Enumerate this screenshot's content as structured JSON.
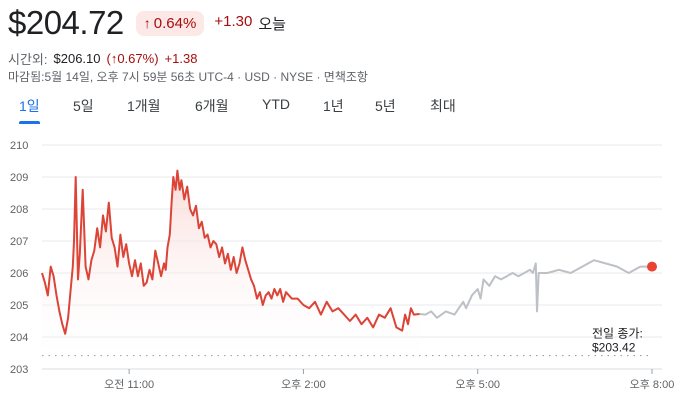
{
  "quote": {
    "price": "$204.72",
    "change_pct": "0.64%",
    "change_abs": "+1.30",
    "today_label": "오늘",
    "arrow_icon": "arrow-up-icon"
  },
  "after_hours": {
    "label": "시간외:",
    "price": "$206.10",
    "pct": "(↑0.67%)",
    "abs": "+1.38"
  },
  "meta_line": "마감됨:5월 14일, 오후 7시 59분 56초 UTC-4 · USD · NYSE · 면책조항",
  "tabs": [
    {
      "label": "1일",
      "active": true
    },
    {
      "label": "5일",
      "active": false
    },
    {
      "label": "1개월",
      "active": false
    },
    {
      "label": "6개월",
      "active": false
    },
    {
      "label": "YTD",
      "active": false
    },
    {
      "label": "1년",
      "active": false
    },
    {
      "label": "5년",
      "active": false
    },
    {
      "label": "최대",
      "active": false
    }
  ],
  "colors": {
    "regular_line": "#db4437",
    "after_hours_line": "#bdc1c6",
    "fill_top": "#f8d7d3",
    "grid": "#e8eaed",
    "prev_close_line": "#9aa0a6",
    "end_dot": "#ea4335"
  },
  "chart_data": {
    "type": "line",
    "y_ticks": [
      "210",
      "209",
      "208",
      "207",
      "206",
      "205",
      "204",
      "203"
    ],
    "ylim": [
      203,
      210
    ],
    "x_ticks": [
      "오전 11:00",
      "오후 2:00",
      "오후 5:00",
      "오후 8:00"
    ],
    "x_tick_hours": [
      11,
      14,
      17,
      20
    ],
    "x_range_hours": [
      9.5,
      20
    ],
    "previous_close": {
      "label": "전일 종가:",
      "value_text": "$203.42",
      "value": 203.42
    },
    "series": [
      {
        "segment": "regular",
        "points": [
          [
            9.5,
            206.0
          ],
          [
            9.55,
            205.7
          ],
          [
            9.6,
            205.3
          ],
          [
            9.65,
            206.2
          ],
          [
            9.7,
            205.9
          ],
          [
            9.75,
            205.3
          ],
          [
            9.8,
            204.8
          ],
          [
            9.85,
            204.4
          ],
          [
            9.9,
            204.1
          ],
          [
            9.95,
            204.6
          ],
          [
            10.0,
            205.6
          ],
          [
            10.03,
            206.2
          ],
          [
            10.05,
            207.0
          ],
          [
            10.08,
            209.0
          ],
          [
            10.12,
            205.8
          ],
          [
            10.15,
            206.6
          ],
          [
            10.2,
            208.6
          ],
          [
            10.25,
            206.2
          ],
          [
            10.3,
            205.8
          ],
          [
            10.35,
            206.4
          ],
          [
            10.4,
            206.7
          ],
          [
            10.45,
            207.4
          ],
          [
            10.5,
            206.8
          ],
          [
            10.55,
            207.8
          ],
          [
            10.6,
            207.3
          ],
          [
            10.65,
            208.2
          ],
          [
            10.7,
            207.1
          ],
          [
            10.75,
            206.8
          ],
          [
            10.8,
            206.2
          ],
          [
            10.85,
            207.2
          ],
          [
            10.9,
            206.5
          ],
          [
            10.95,
            206.9
          ],
          [
            11.0,
            206.3
          ],
          [
            11.05,
            205.9
          ],
          [
            11.1,
            206.4
          ],
          [
            11.15,
            205.9
          ],
          [
            11.2,
            206.3
          ],
          [
            11.25,
            205.6
          ],
          [
            11.3,
            205.7
          ],
          [
            11.35,
            206.1
          ],
          [
            11.4,
            205.8
          ],
          [
            11.45,
            206.7
          ],
          [
            11.5,
            206.3
          ],
          [
            11.55,
            205.9
          ],
          [
            11.6,
            206.3
          ],
          [
            11.63,
            206.1
          ],
          [
            11.66,
            206.8
          ],
          [
            11.7,
            207.2
          ],
          [
            11.73,
            208.2
          ],
          [
            11.76,
            209.0
          ],
          [
            11.8,
            208.6
          ],
          [
            11.83,
            209.2
          ],
          [
            11.87,
            208.6
          ],
          [
            11.9,
            208.9
          ],
          [
            11.95,
            208.3
          ],
          [
            12.0,
            208.7
          ],
          [
            12.05,
            208.0
          ],
          [
            12.1,
            207.8
          ],
          [
            12.15,
            208.1
          ],
          [
            12.2,
            207.4
          ],
          [
            12.25,
            207.6
          ],
          [
            12.3,
            207.1
          ],
          [
            12.35,
            207.2
          ],
          [
            12.4,
            206.8
          ],
          [
            12.45,
            207.0
          ],
          [
            12.5,
            206.9
          ],
          [
            12.55,
            206.5
          ],
          [
            12.6,
            206.8
          ],
          [
            12.65,
            206.3
          ],
          [
            12.7,
            206.6
          ],
          [
            12.75,
            206.1
          ],
          [
            12.8,
            206.5
          ],
          [
            12.85,
            206.0
          ],
          [
            12.9,
            206.3
          ],
          [
            12.95,
            206.8
          ],
          [
            13.0,
            206.4
          ],
          [
            13.05,
            206.1
          ],
          [
            13.1,
            205.8
          ],
          [
            13.15,
            205.6
          ],
          [
            13.2,
            205.2
          ],
          [
            13.25,
            205.4
          ],
          [
            13.3,
            205.0
          ],
          [
            13.35,
            205.3
          ],
          [
            13.4,
            205.4
          ],
          [
            13.45,
            205.2
          ],
          [
            13.5,
            205.5
          ],
          [
            13.55,
            205.3
          ],
          [
            13.6,
            205.5
          ],
          [
            13.65,
            205.1
          ],
          [
            13.7,
            205.4
          ],
          [
            13.8,
            205.2
          ],
          [
            13.9,
            205.2
          ],
          [
            14.0,
            205.0
          ],
          [
            14.1,
            204.9
          ],
          [
            14.2,
            205.1
          ],
          [
            14.3,
            204.7
          ],
          [
            14.4,
            205.1
          ],
          [
            14.5,
            204.8
          ],
          [
            14.6,
            204.9
          ],
          [
            14.7,
            204.7
          ],
          [
            14.8,
            204.5
          ],
          [
            14.9,
            204.7
          ],
          [
            15.0,
            204.4
          ],
          [
            15.1,
            204.6
          ],
          [
            15.2,
            204.3
          ],
          [
            15.3,
            204.7
          ],
          [
            15.4,
            204.6
          ],
          [
            15.5,
            204.9
          ],
          [
            15.6,
            204.3
          ],
          [
            15.7,
            204.2
          ],
          [
            15.75,
            204.7
          ],
          [
            15.8,
            204.4
          ],
          [
            15.85,
            204.9
          ],
          [
            15.9,
            204.7
          ],
          [
            16.0,
            204.72
          ]
        ]
      },
      {
        "segment": "after_hours",
        "points": [
          [
            16.0,
            204.72
          ],
          [
            16.1,
            204.7
          ],
          [
            16.2,
            204.8
          ],
          [
            16.3,
            204.6
          ],
          [
            16.45,
            204.8
          ],
          [
            16.6,
            204.7
          ],
          [
            16.75,
            205.1
          ],
          [
            16.8,
            204.9
          ],
          [
            16.9,
            205.3
          ],
          [
            17.0,
            205.5
          ],
          [
            17.05,
            205.2
          ],
          [
            17.1,
            205.8
          ],
          [
            17.2,
            205.6
          ],
          [
            17.3,
            205.9
          ],
          [
            17.4,
            205.8
          ],
          [
            17.5,
            205.9
          ],
          [
            17.6,
            206.0
          ],
          [
            17.7,
            205.9
          ],
          [
            17.8,
            206.0
          ],
          [
            17.9,
            206.1
          ],
          [
            17.95,
            206.0
          ],
          [
            18.0,
            206.3
          ],
          [
            18.02,
            204.8
          ],
          [
            18.05,
            206.0
          ],
          [
            18.2,
            206.0
          ],
          [
            18.4,
            206.1
          ],
          [
            18.6,
            206.0
          ],
          [
            18.8,
            206.2
          ],
          [
            19.0,
            206.4
          ],
          [
            19.2,
            206.3
          ],
          [
            19.4,
            206.2
          ],
          [
            19.6,
            206.0
          ],
          [
            19.8,
            206.2
          ],
          [
            20.0,
            206.2
          ]
        ]
      }
    ]
  }
}
